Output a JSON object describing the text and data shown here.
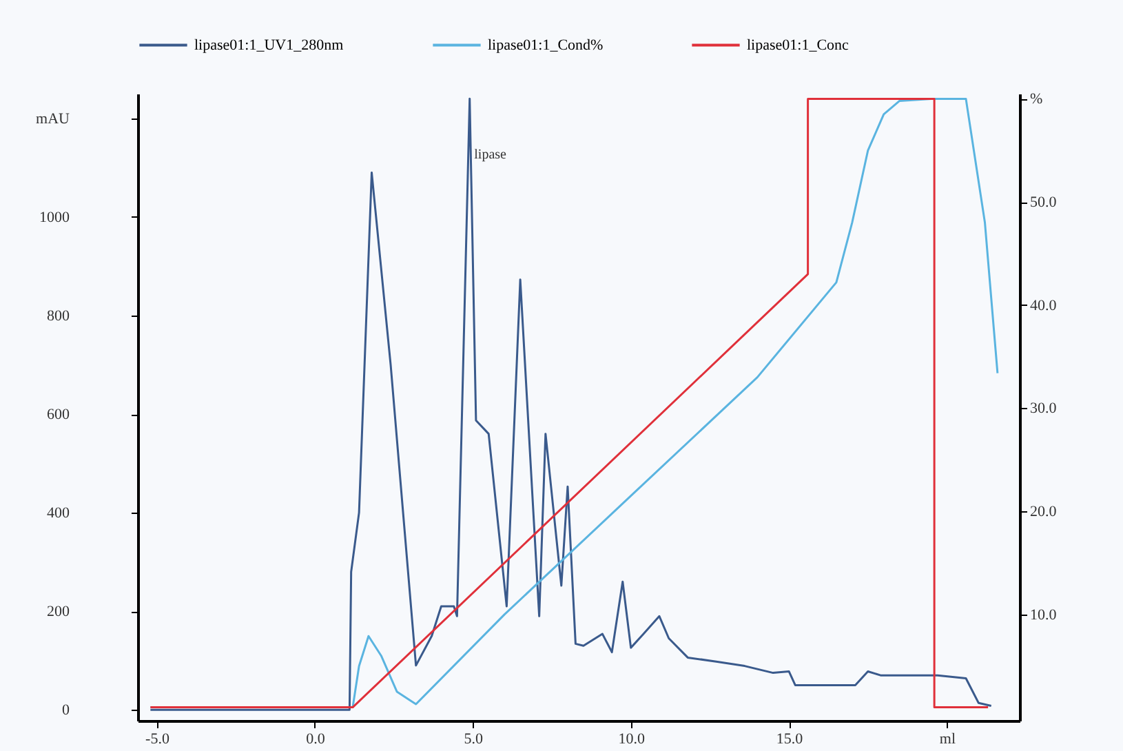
{
  "chart_data": {
    "type": "line",
    "legend": "top",
    "grid": false,
    "xlim": [
      -5.6,
      22.3
    ],
    "ylim": [
      -22,
      1250
    ],
    "y2lim": [
      -0.3,
      60.5
    ],
    "xticks": [
      {
        "value": -5,
        "label": "-5.0"
      },
      {
        "value": 0,
        "label": "0.0"
      },
      {
        "value": 5,
        "label": "5.0"
      },
      {
        "value": 10,
        "label": "10.0"
      },
      {
        "value": 15,
        "label": "15.0"
      },
      {
        "value": 20,
        "label": "ml"
      }
    ],
    "yticks": [
      0,
      200,
      400,
      600,
      800,
      1000,
      {
        "value": 1200,
        "label": "mAU"
      }
    ],
    "y2ticks": [
      {
        "value": 10,
        "label": "10.0"
      },
      {
        "value": 20,
        "label": "20.0"
      },
      {
        "value": 30,
        "label": "30.0"
      },
      {
        "value": 40,
        "label": "40.0"
      },
      {
        "value": 50,
        "label": "50.0"
      },
      {
        "value": 60,
        "label": "%"
      }
    ],
    "annotations": [
      {
        "text": "lipase",
        "x": 5.0,
        "y": 1127
      }
    ],
    "series": [
      {
        "name": "lipase01:1_UV1_280nm",
        "color": "#3a5a8c",
        "x": [
          -5.2,
          1.1,
          1.15,
          1.4,
          1.8,
          2.4,
          3.2,
          3.7,
          4.0,
          4.4,
          4.5,
          4.9,
          5.1,
          5.5,
          6.07,
          6.5,
          7.1,
          7.3,
          7.8,
          8.0,
          8.25,
          8.5,
          9.1,
          9.4,
          9.74,
          10.0,
          10.4,
          10.9,
          11.2,
          11.8,
          12.7,
          13.6,
          14.5,
          15.0,
          15.2,
          15.8,
          17.1,
          17.5,
          17.9,
          19.7,
          20.6,
          21.0,
          21.4
        ],
        "values": [
          0,
          0,
          280,
          400,
          1090,
          700,
          90,
          150,
          210,
          210,
          190,
          1240,
          587,
          560,
          210,
          873,
          190,
          560,
          252,
          453,
          134,
          130,
          154,
          117,
          260,
          126,
          154,
          190,
          145,
          106,
          98,
          89,
          75,
          78,
          50,
          50,
          50,
          78,
          70,
          70,
          64,
          14,
          8
        ]
      },
      {
        "name": "lipase01:1_Cond%",
        "color": "#5ab4e0",
        "axis": "y2",
        "x": [
          -5.2,
          1.2,
          1.4,
          1.7,
          2.1,
          2.6,
          3.2,
          6.0,
          10.0,
          14.0,
          16.5,
          17.0,
          17.5,
          18.0,
          18.5,
          19.5,
          20.6,
          21.2,
          21.6
        ],
        "values": [
          1,
          1,
          5,
          7.9,
          6,
          2.5,
          1.3,
          10,
          21.5,
          33,
          42.2,
          48,
          55,
          58.5,
          59.8,
          60,
          60,
          48,
          33.4
        ]
      },
      {
        "name": "lipase01:1_Conc",
        "color": "#e0303a",
        "axis": "y2",
        "x": [
          -5.2,
          1.2,
          15.6,
          15.6,
          19.6,
          19.6,
          21.3
        ],
        "values": [
          1,
          1,
          43,
          60,
          60,
          1,
          1
        ]
      }
    ]
  }
}
